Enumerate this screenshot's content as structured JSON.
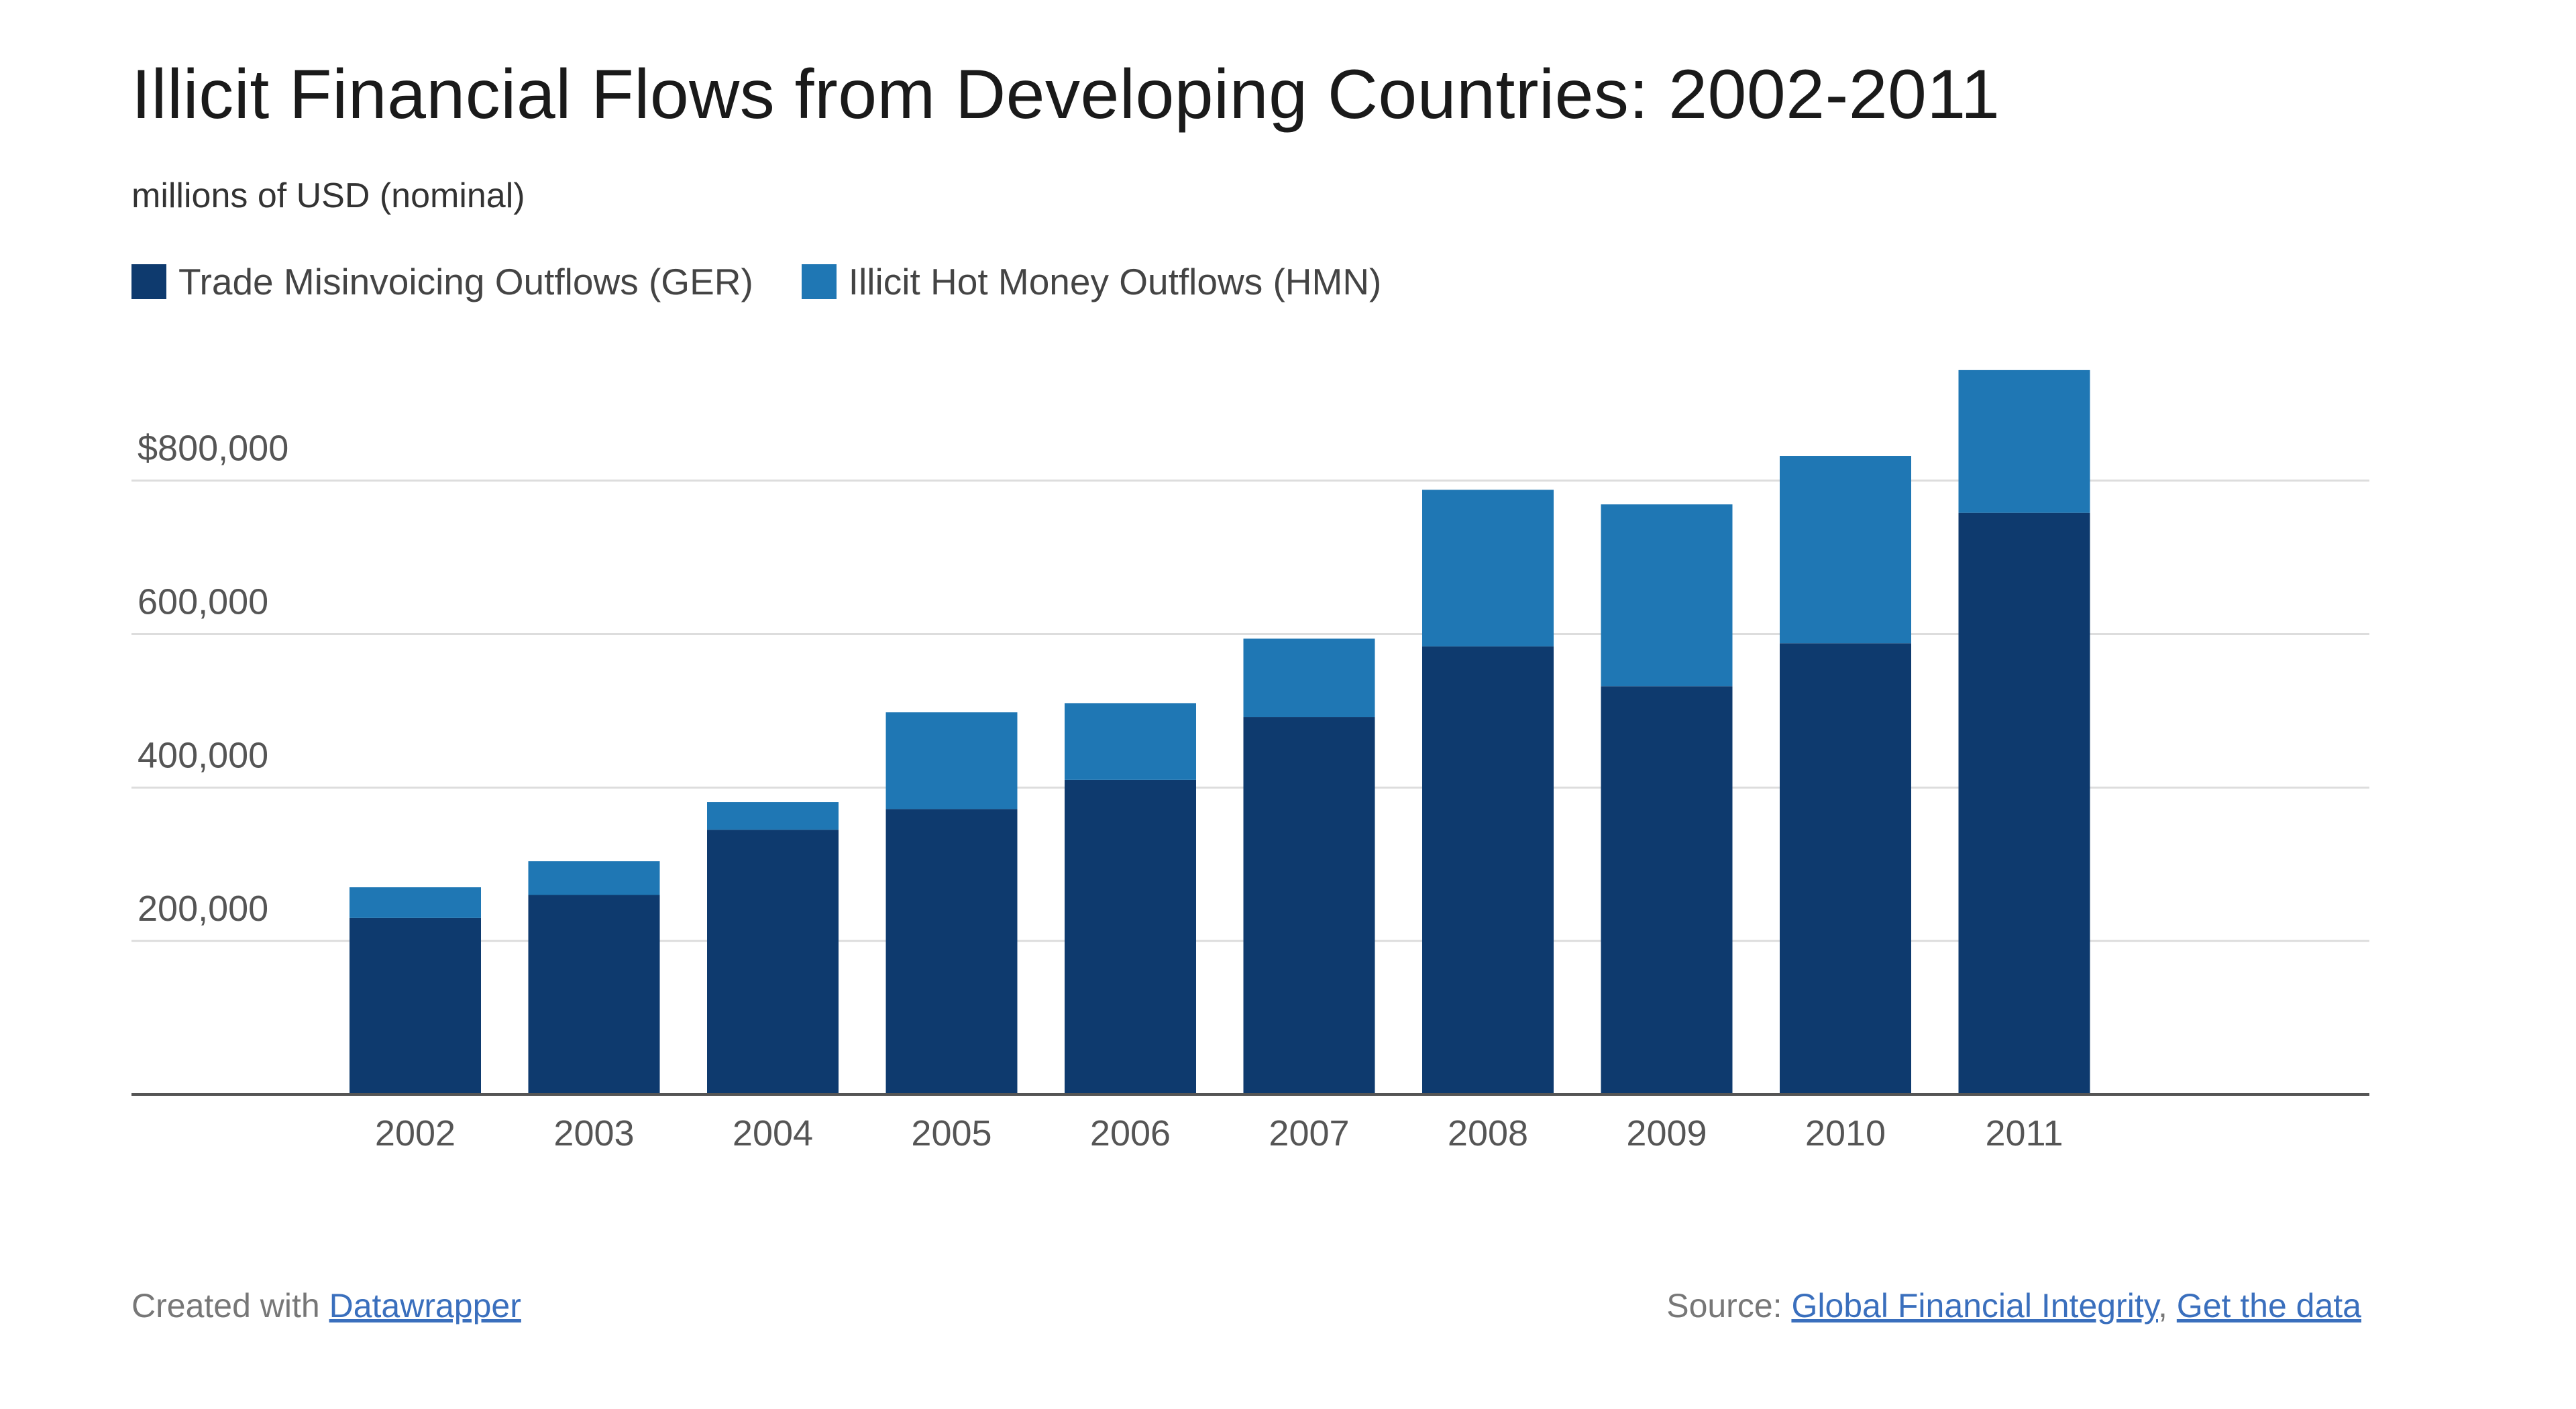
{
  "chart_data": {
    "type": "bar",
    "stacked": true,
    "title": "Illicit Financial Flows from Developing Countries: 2002-2011",
    "subtitle": "millions of USD (nominal)",
    "xlabel": "",
    "ylabel": "",
    "categories": [
      "2002",
      "2003",
      "2004",
      "2005",
      "2006",
      "2007",
      "2008",
      "2009",
      "2010",
      "2011"
    ],
    "series": [
      {
        "name": "Trade Misinvoicing Outflows (GER)",
        "color": "#0e3a6e",
        "values": [
          230000,
          260000,
          345000,
          372000,
          410000,
          492000,
          584000,
          532000,
          588000,
          758000
        ]
      },
      {
        "name": "Illicit Hot Money Outflows (HMN)",
        "color": "#1f77b4",
        "values": [
          40000,
          44000,
          36000,
          126000,
          100000,
          102000,
          204000,
          237000,
          244000,
          186000
        ]
      }
    ],
    "ylim": [
      0,
      950000
    ],
    "yticks": [
      {
        "value": 200000,
        "label": "200,000"
      },
      {
        "value": 400000,
        "label": "400,000"
      },
      {
        "value": 600000,
        "label": "600,000"
      },
      {
        "value": 800000,
        "label": "$800,000"
      }
    ],
    "grid": true,
    "legend_position": "top-left"
  },
  "footer": {
    "created_prefix": "Created with ",
    "created_link": "Datawrapper",
    "source_prefix": "Source: ",
    "source_link": "Global Financial Integrity",
    "separator": ", ",
    "data_link": "Get the data"
  },
  "colors": {
    "grid": "#dddddd",
    "baseline": "#555555",
    "link": "#3a6fbd"
  }
}
